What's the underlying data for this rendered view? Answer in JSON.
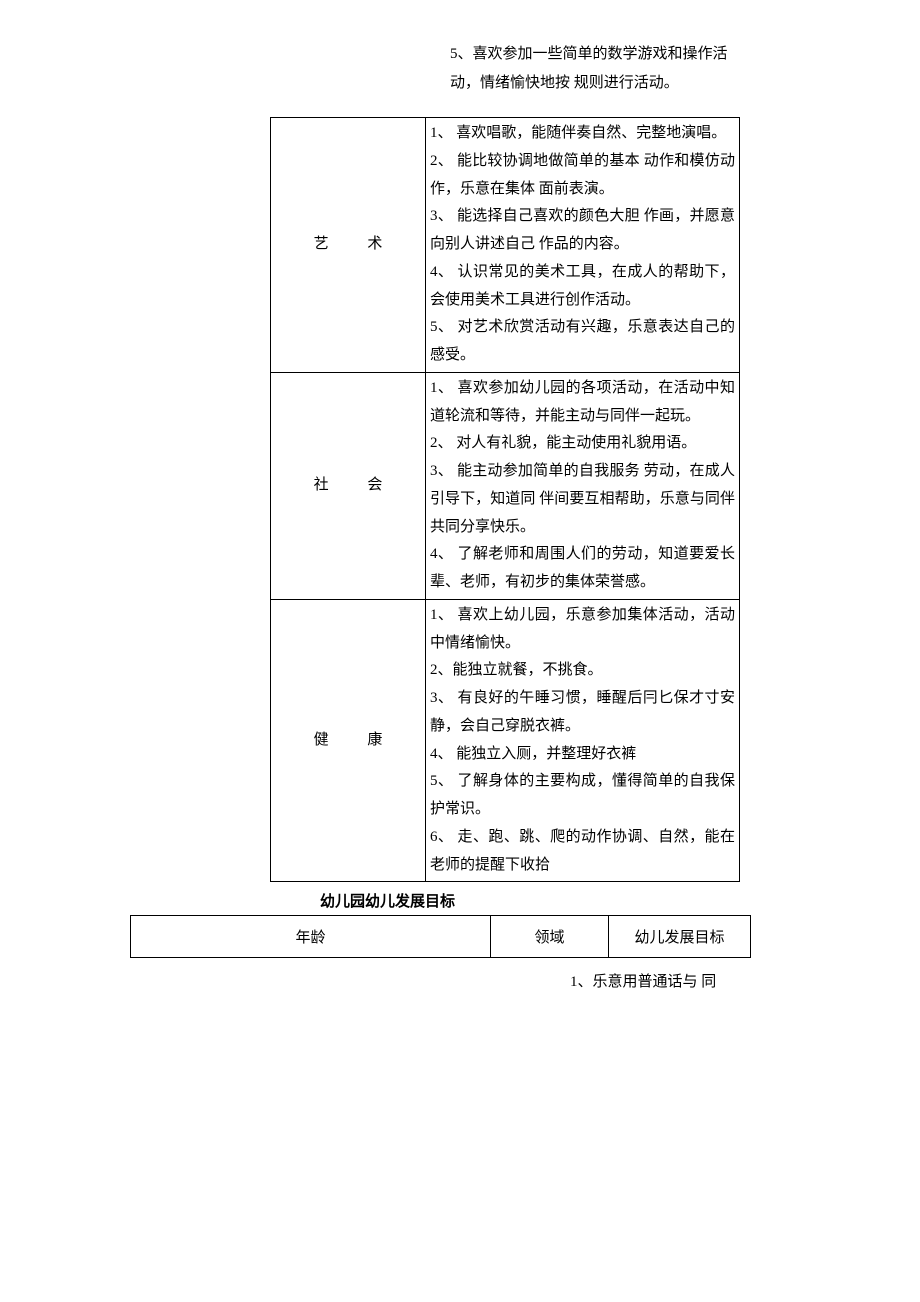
{
  "topParagraph": "5、喜欢参加一些简单的数学游戏和操作活动，情绪愉快地按 规则进行活动。",
  "rows": [
    {
      "catA": "艺",
      "catB": "术",
      "content": "1、 喜欢唱歌，能随伴奏自然、完整地演唱。\n2、 能比较协调地做简单的基本 动作和模仿动作，乐意在集体 面前表演。\n3、 能选择自己喜欢的颜色大胆 作画，并愿意向别人讲述自己 作品的内容。\n4、 认识常见的美术工具，在成人的帮助下，会使用美术工具进行创作活动。\n5、 对艺术欣赏活动有兴趣，乐意表达自己的感受。"
    },
    {
      "catA": "社",
      "catB": "会",
      "content": "1、 喜欢参加幼儿园的各项活动，在活动中知道轮流和等待，并能主动与同伴一起玩。\n2、 对人有礼貌，能主动使用礼貌用语。\n3、 能主动参加简单的自我服务 劳动，在成人引导下，知道同 伴间要互相帮助，乐意与同伴 共同分享快乐。\n4、 了解老师和周围人们的劳动，知道要爱长辈、老师，有初步的集体荣誉感。"
    },
    {
      "catA": "健",
      "catB": "康",
      "content": "1、 喜欢上幼儿园，乐意参加集体活动，活动中情绪愉快。\n2、能独立就餐，不挑食。\n3、 有良好的午睡习惯，睡醒后冃匕保才寸安静，会自己穿脱衣裤。\n4、 能独立入厕，并整理好衣裤\n5、 了解身体的主要构成，懂得简单的自我保护常识。\n6、 走、跑、跳、爬的动作协调、自然，能在老师的提醒下收拾"
    }
  ],
  "sectionTitle": "幼儿园幼儿发展目标",
  "headers": {
    "col1": "年龄",
    "col2": "领域",
    "col3": "幼儿发展目标"
  },
  "trailing": "1、乐意用普通话与 同"
}
